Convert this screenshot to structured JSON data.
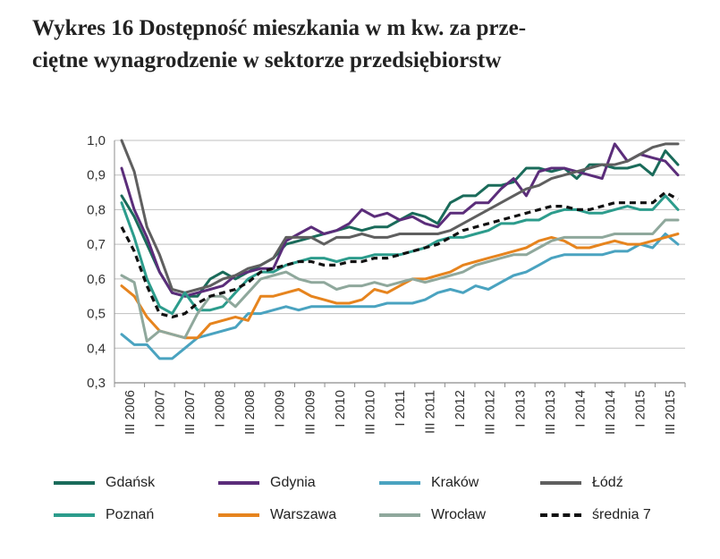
{
  "title_line1": "Wykres 16 Dostępność mieszkania w m kw. za prze-",
  "title_line2": "ciętne wynagrodzenie w sektorze przedsiębiorstw",
  "chart_data": {
    "type": "line",
    "title": "Wykres 16 Dostępność mieszkania w m kw. za przeciętne wynagrodzenie w sektorze przedsiębiorstw",
    "xlabel": "",
    "ylabel": "",
    "ylim": [
      0.3,
      1.0
    ],
    "yticks": [
      "1,0",
      "0,9",
      "0,8",
      "0,7",
      "0,6",
      "0,5",
      "0,4",
      "0,3"
    ],
    "ytick_values": [
      1.0,
      0.9,
      0.8,
      0.7,
      0.6,
      0.5,
      0.4,
      0.3
    ],
    "grid": true,
    "legend_position": "bottom",
    "x_tick_labels": [
      "III 2006",
      "I 2007",
      "III 2007",
      "I 2008",
      "III 2008",
      "I 2009",
      "III 2009",
      "I 2010",
      "III 2010",
      "I 2011",
      "III 2011",
      "I 2012",
      "III 2012",
      "I 2013",
      "III 2013",
      "I 2014",
      "III 2014",
      "I 2015",
      "III 2015"
    ],
    "series": [
      {
        "name": "Gdańsk",
        "color": "#1a6b5a",
        "dashed": false,
        "values": [
          0.84,
          0.78,
          0.7,
          0.62,
          0.56,
          0.55,
          0.55,
          0.6,
          0.62,
          0.6,
          0.62,
          0.64,
          0.66,
          0.7,
          0.71,
          0.72,
          0.73,
          0.74,
          0.75,
          0.74,
          0.75,
          0.75,
          0.77,
          0.79,
          0.78,
          0.76,
          0.82,
          0.84,
          0.84,
          0.87,
          0.87,
          0.88,
          0.92,
          0.92,
          0.91,
          0.92,
          0.89,
          0.93,
          0.93,
          0.92,
          0.92,
          0.93,
          0.9,
          0.97,
          0.93
        ]
      },
      {
        "name": "Gdynia",
        "color": "#5b2d7a",
        "dashed": false,
        "values": [
          0.92,
          0.8,
          0.72,
          0.62,
          0.56,
          0.55,
          0.56,
          0.57,
          0.58,
          0.61,
          0.62,
          0.63,
          0.63,
          0.71,
          0.73,
          0.75,
          0.73,
          0.74,
          0.76,
          0.8,
          0.78,
          0.79,
          0.77,
          0.78,
          0.76,
          0.75,
          0.79,
          0.79,
          0.82,
          0.82,
          0.86,
          0.89,
          0.84,
          0.91,
          0.92,
          0.92,
          0.91,
          0.9,
          0.89,
          0.99,
          0.94,
          0.96,
          0.95,
          0.94,
          0.9
        ]
      },
      {
        "name": "Kraków",
        "color": "#4aa3c0",
        "dashed": false,
        "values": [
          0.44,
          0.41,
          0.41,
          0.37,
          0.37,
          0.4,
          0.43,
          0.44,
          0.45,
          0.46,
          0.5,
          0.5,
          0.51,
          0.52,
          0.51,
          0.52,
          0.52,
          0.52,
          0.52,
          0.52,
          0.52,
          0.53,
          0.53,
          0.53,
          0.54,
          0.56,
          0.57,
          0.56,
          0.58,
          0.57,
          0.59,
          0.61,
          0.62,
          0.64,
          0.66,
          0.67,
          0.67,
          0.67,
          0.67,
          0.68,
          0.68,
          0.7,
          0.69,
          0.73,
          0.7
        ]
      },
      {
        "name": "Łódź",
        "color": "#5f5f5f",
        "dashed": false,
        "values": [
          1.0,
          0.91,
          0.75,
          0.67,
          0.57,
          0.56,
          0.57,
          0.58,
          0.6,
          0.61,
          0.63,
          0.64,
          0.66,
          0.72,
          0.72,
          0.72,
          0.7,
          0.72,
          0.72,
          0.73,
          0.72,
          0.72,
          0.73,
          0.73,
          0.73,
          0.73,
          0.74,
          0.76,
          0.78,
          0.8,
          0.82,
          0.84,
          0.86,
          0.87,
          0.89,
          0.9,
          0.91,
          0.92,
          0.93,
          0.93,
          0.94,
          0.96,
          0.98,
          0.99,
          0.99
        ]
      },
      {
        "name": "Poznań",
        "color": "#2c9c8c",
        "dashed": false,
        "values": [
          0.82,
          0.72,
          0.6,
          0.52,
          0.5,
          0.56,
          0.51,
          0.51,
          0.52,
          0.56,
          0.6,
          0.62,
          0.62,
          0.64,
          0.65,
          0.66,
          0.66,
          0.65,
          0.66,
          0.66,
          0.67,
          0.67,
          0.67,
          0.68,
          0.69,
          0.71,
          0.72,
          0.72,
          0.73,
          0.74,
          0.76,
          0.76,
          0.77,
          0.77,
          0.79,
          0.8,
          0.8,
          0.79,
          0.79,
          0.8,
          0.81,
          0.8,
          0.8,
          0.84,
          0.8
        ]
      },
      {
        "name": "Warszawa",
        "color": "#e6841e",
        "dashed": false,
        "values": [
          0.58,
          0.55,
          0.49,
          0.45,
          0.44,
          0.43,
          0.43,
          0.47,
          0.48,
          0.49,
          0.48,
          0.55,
          0.55,
          0.56,
          0.57,
          0.55,
          0.54,
          0.53,
          0.53,
          0.54,
          0.57,
          0.56,
          0.58,
          0.6,
          0.6,
          0.61,
          0.62,
          0.64,
          0.65,
          0.66,
          0.67,
          0.68,
          0.69,
          0.71,
          0.72,
          0.71,
          0.69,
          0.69,
          0.7,
          0.71,
          0.7,
          0.7,
          0.71,
          0.72,
          0.73
        ]
      },
      {
        "name": "Wrocław",
        "color": "#8fa89c",
        "dashed": false,
        "values": [
          0.61,
          0.59,
          0.42,
          0.45,
          0.44,
          0.43,
          0.5,
          0.55,
          0.55,
          0.52,
          0.56,
          0.6,
          0.61,
          0.62,
          0.6,
          0.59,
          0.59,
          0.57,
          0.58,
          0.58,
          0.59,
          0.58,
          0.59,
          0.6,
          0.59,
          0.6,
          0.61,
          0.62,
          0.64,
          0.65,
          0.66,
          0.67,
          0.67,
          0.69,
          0.71,
          0.72,
          0.72,
          0.72,
          0.72,
          0.73,
          0.73,
          0.73,
          0.73,
          0.77,
          0.77
        ]
      },
      {
        "name": "średnia 7",
        "color": "#111111",
        "dashed": true,
        "values": [
          0.75,
          0.68,
          0.58,
          0.5,
          0.49,
          0.5,
          0.53,
          0.55,
          0.56,
          0.57,
          0.59,
          0.62,
          0.63,
          0.64,
          0.65,
          0.65,
          0.64,
          0.64,
          0.65,
          0.65,
          0.66,
          0.66,
          0.67,
          0.68,
          0.69,
          0.7,
          0.72,
          0.74,
          0.75,
          0.76,
          0.77,
          0.78,
          0.79,
          0.8,
          0.81,
          0.81,
          0.8,
          0.8,
          0.81,
          0.82,
          0.82,
          0.82,
          0.82,
          0.85,
          0.83
        ]
      }
    ]
  },
  "legend": [
    {
      "label": "Gdańsk"
    },
    {
      "label": "Gdynia"
    },
    {
      "label": "Kraków"
    },
    {
      "label": "Łódź"
    },
    {
      "label": "Poznań"
    },
    {
      "label": "Warszawa"
    },
    {
      "label": "Wrocław"
    },
    {
      "label": "średnia 7"
    }
  ]
}
